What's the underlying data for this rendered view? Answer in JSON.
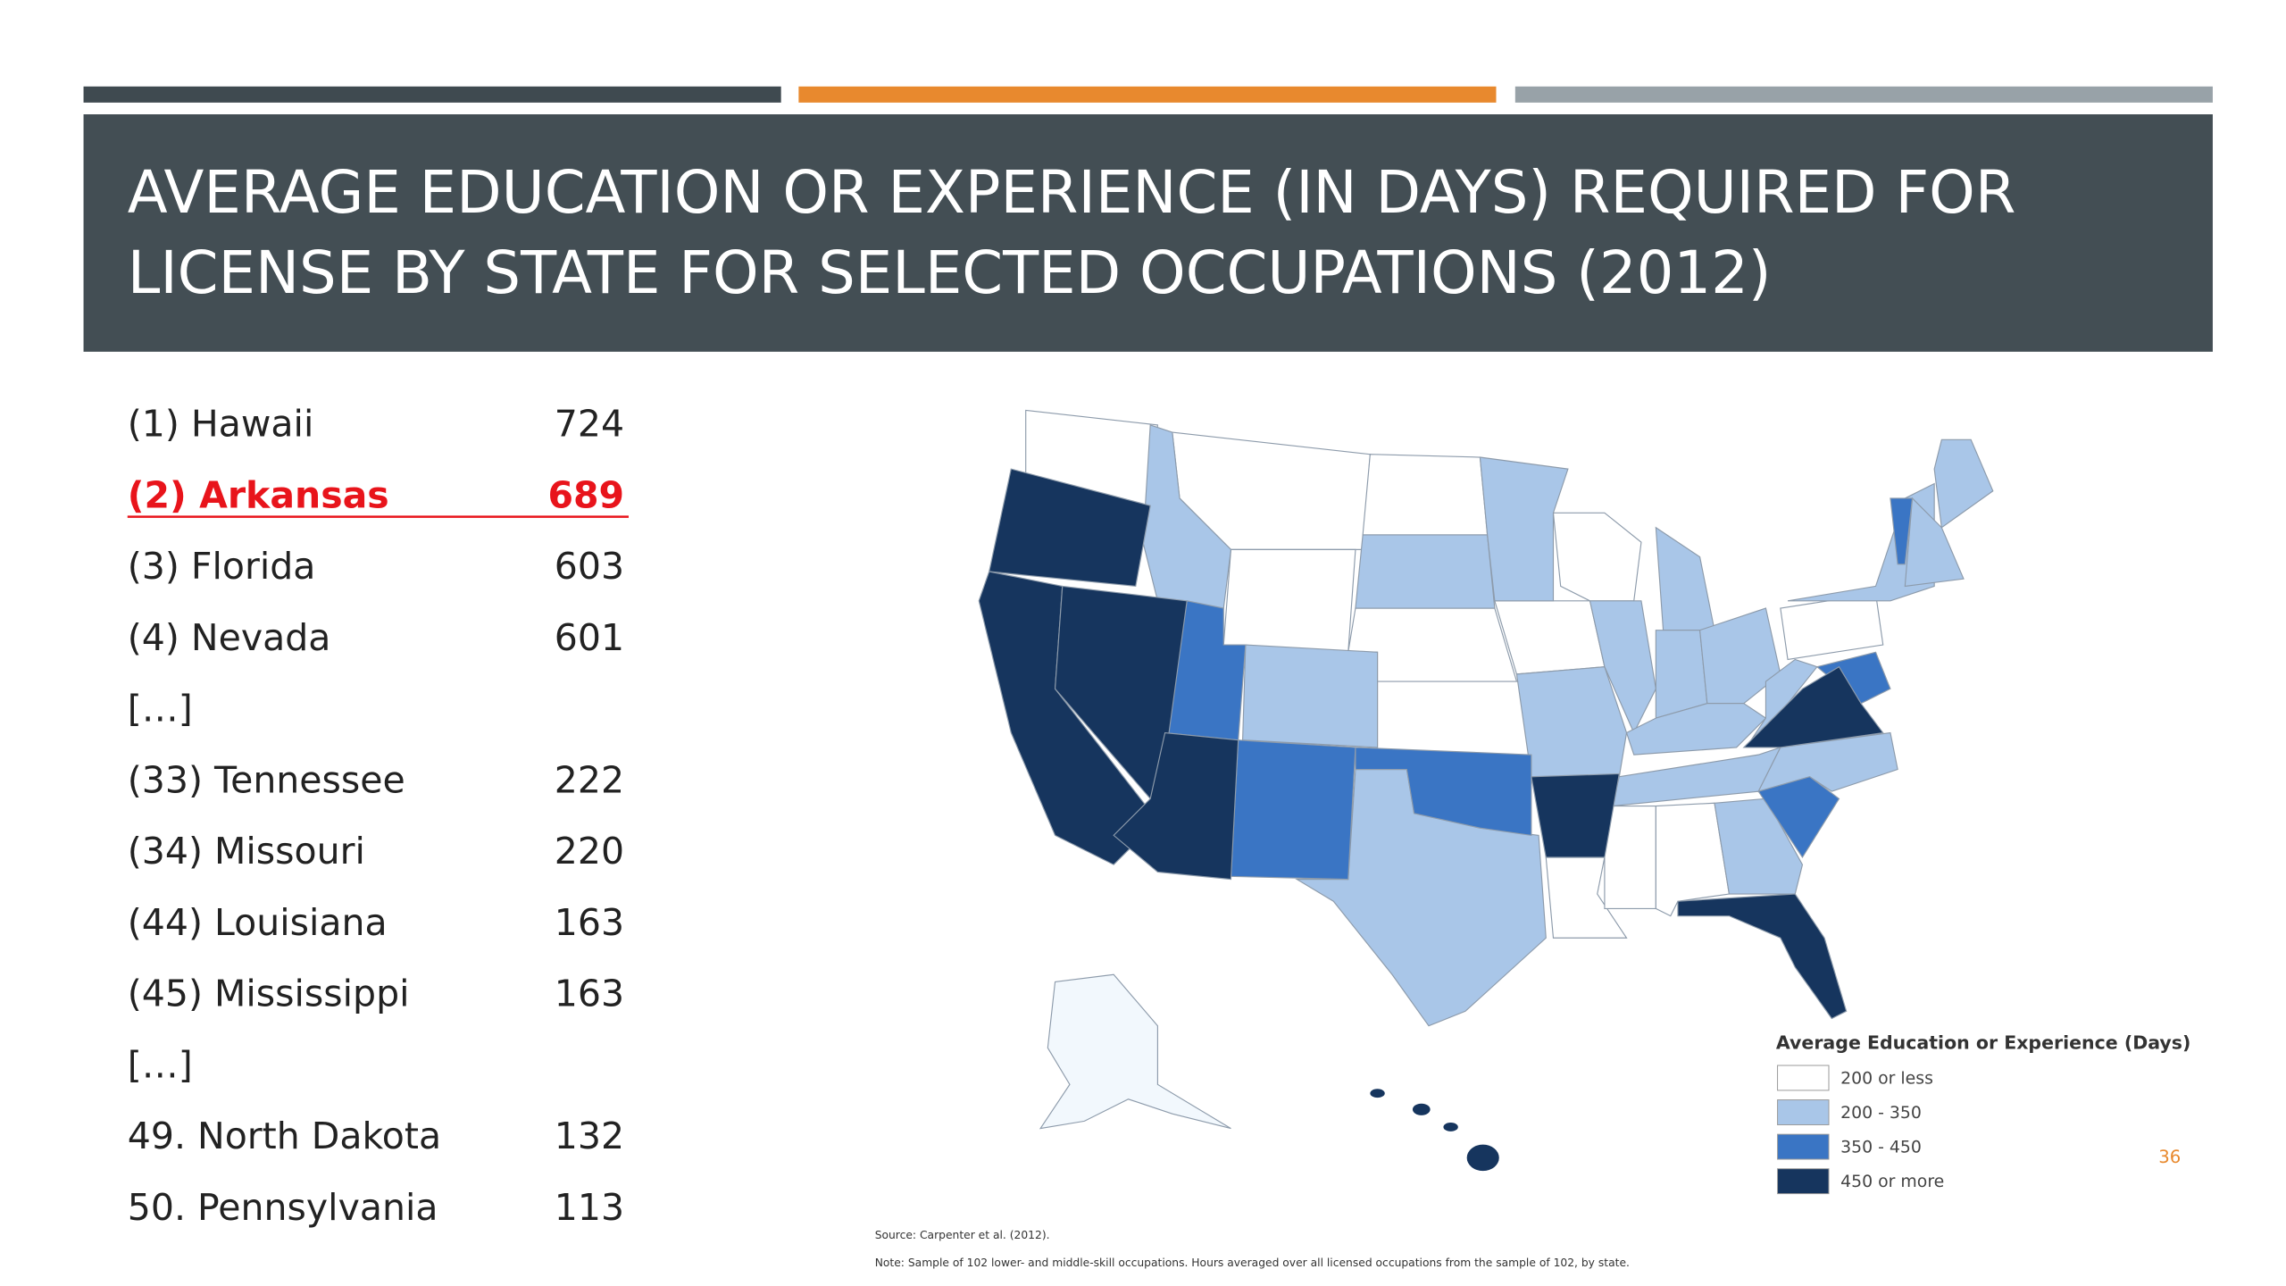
{
  "header": {
    "title_lines": [
      "AVERAGE EDUCATION OR EXPERIENCE (IN DAYS) REQUIRED FOR",
      "LICENSE BY STATE FOR SELECTED OCCUPATIONS (2012)"
    ]
  },
  "ranking": {
    "rows": [
      {
        "label": "(1) Hawaii",
        "value": 724
      },
      {
        "label": "(2) Arkansas",
        "value": 689,
        "highlight": true
      },
      {
        "label": "(3) Florida",
        "value": 603
      },
      {
        "label": "(4) Nevada",
        "value": 601
      },
      {
        "label": "[…]"
      },
      {
        "label": "(33) Tennessee",
        "value": 222
      },
      {
        "label": "(34) Missouri",
        "value": 220
      },
      {
        "label": "(44) Louisiana",
        "value": 163
      },
      {
        "label": "(45) Mississippi",
        "value": 163
      },
      {
        "label": "[…]"
      },
      {
        "label": "49. North Dakota",
        "value": 132
      },
      {
        "label": "50. Pennsylvania",
        "value": 113
      }
    ]
  },
  "legend": {
    "title": "Average Education or Experience (Days)",
    "items": [
      {
        "label": "200 or less",
        "color": "#ffffff"
      },
      {
        "label": "200 - 350",
        "color": "#a9c6e8"
      },
      {
        "label": "350 - 450",
        "color": "#3a75c4"
      },
      {
        "label": "450 or more",
        "color": "#16355e"
      }
    ]
  },
  "source": "Source: Carpenter et al. (2012).",
  "note": "Note: Sample of 102 lower- and middle-skill occupations. Hours averaged over all licensed occupations from the sample of 102, by state.",
  "page_number": 36
}
